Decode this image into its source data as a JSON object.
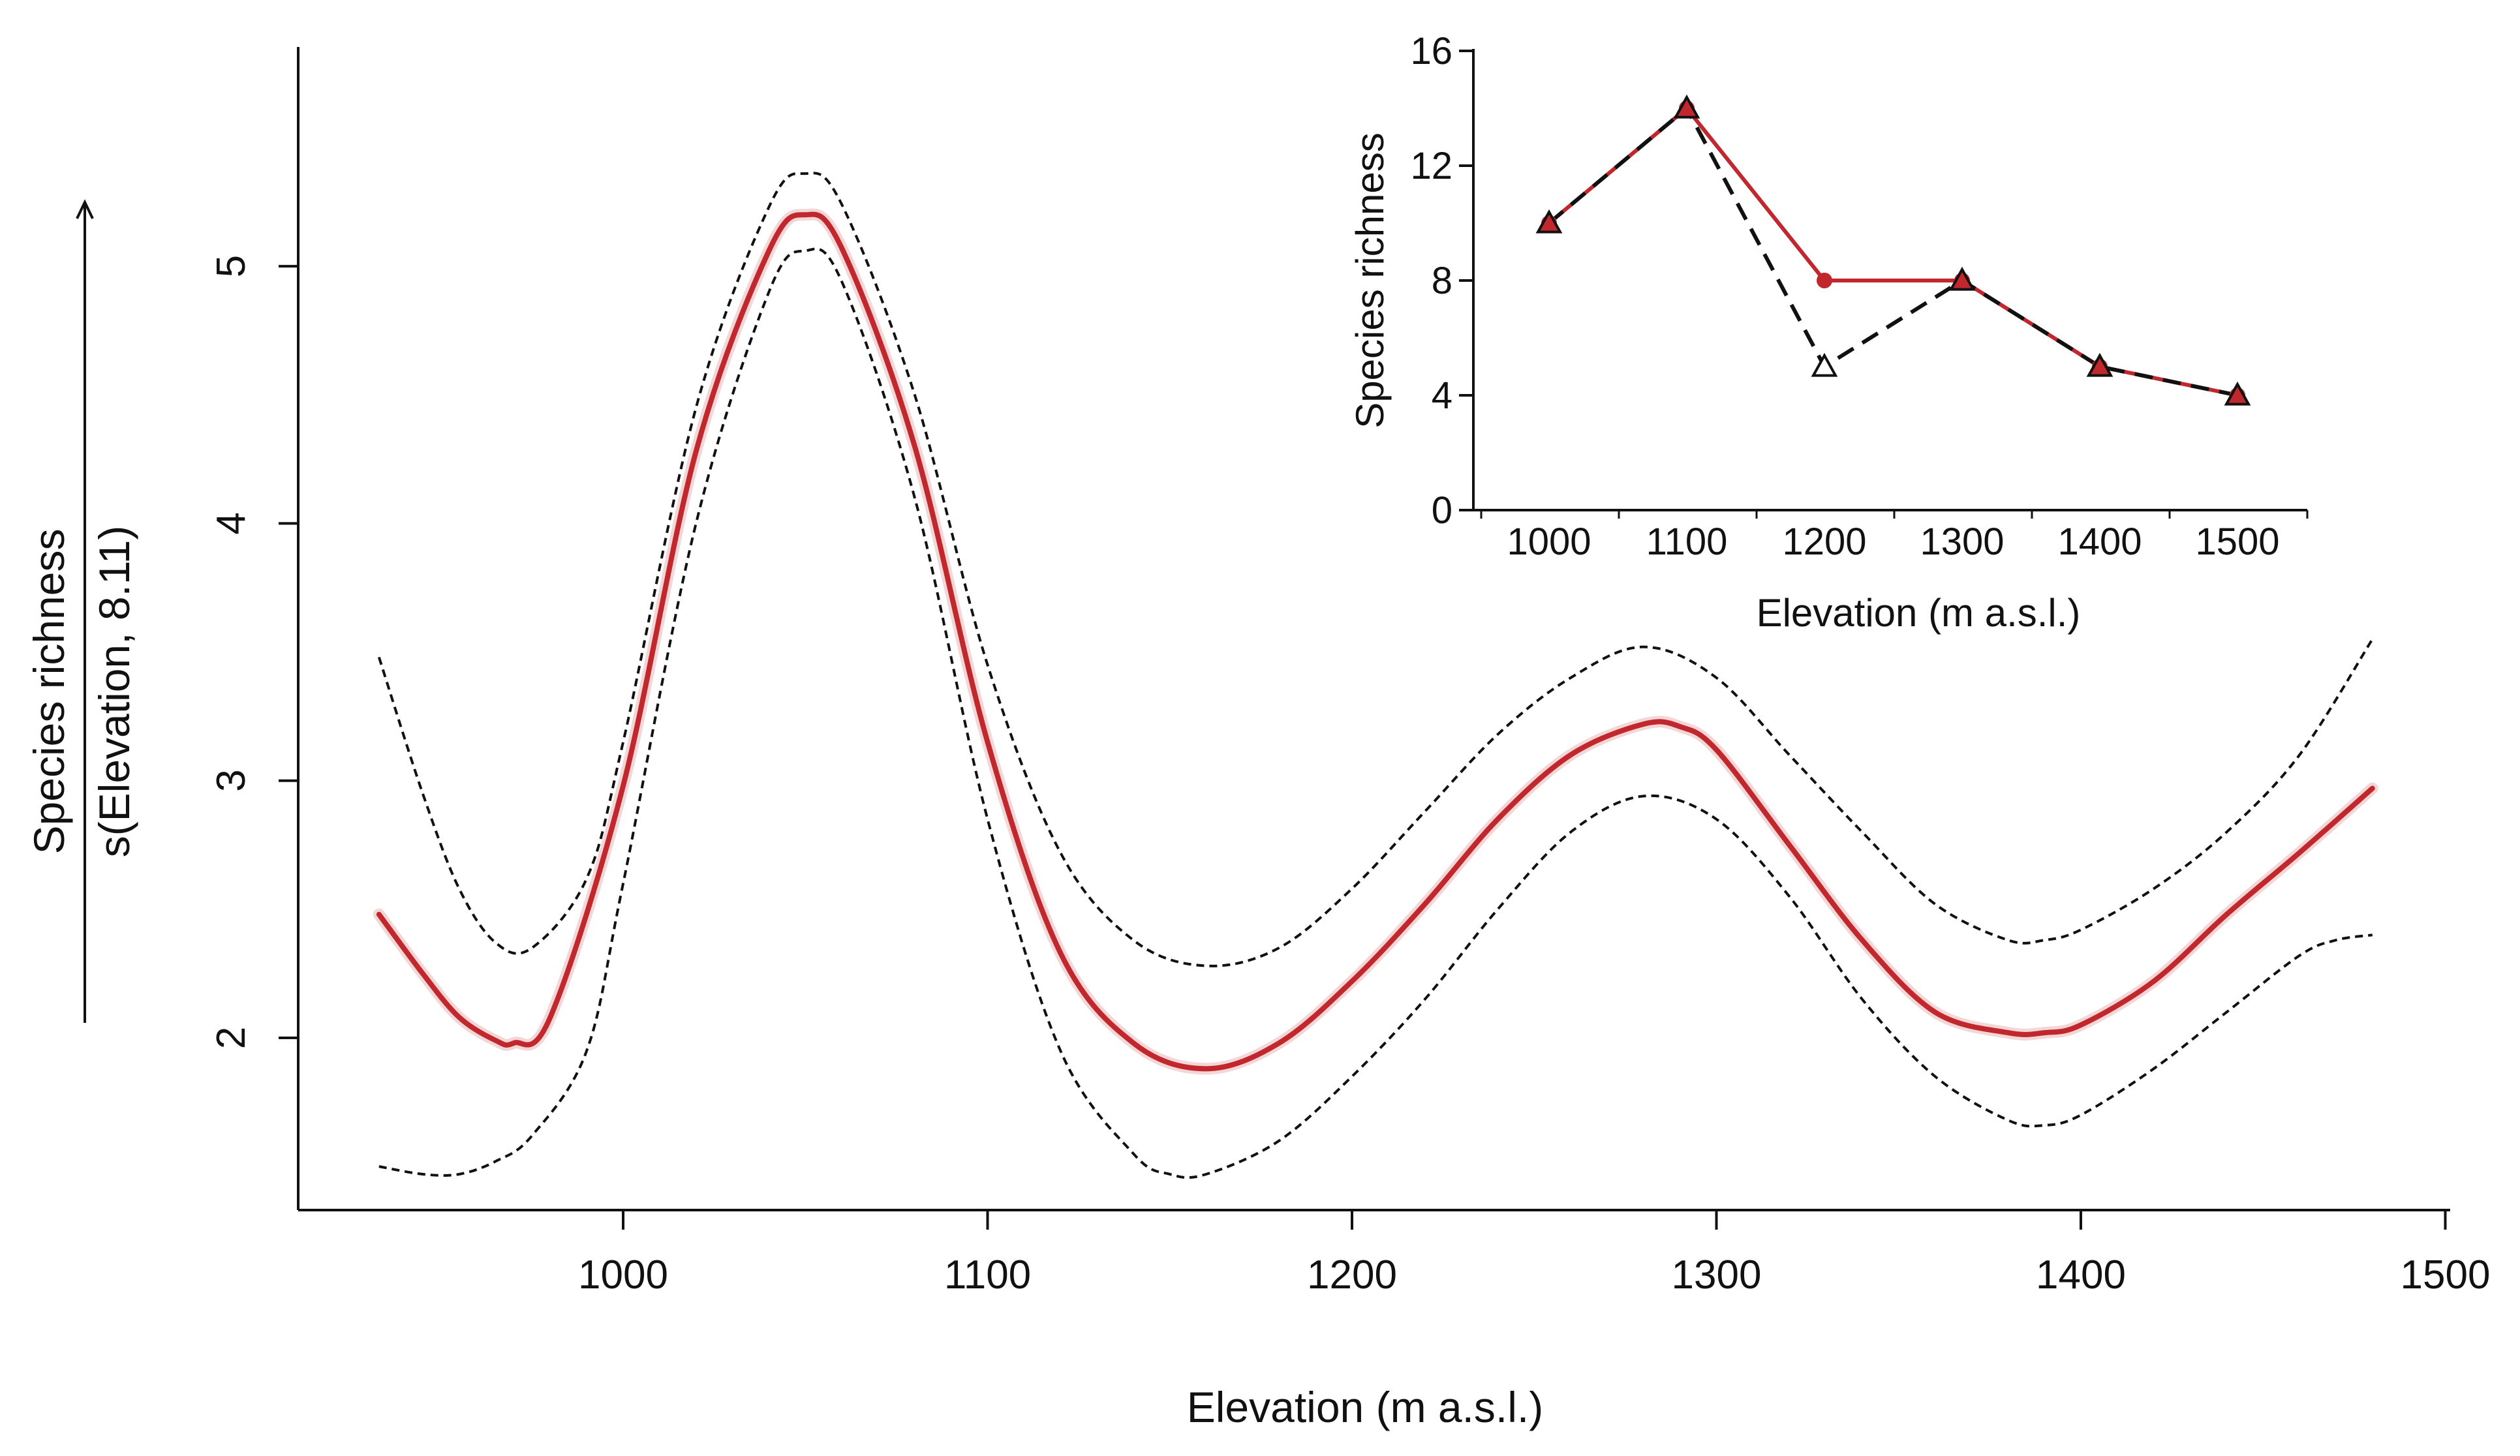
{
  "chart_data": [
    {
      "type": "line",
      "xlabel": "Elevation (m a.s.l.)",
      "ylabel_top": "Species richness",
      "ylabel_bottom": "s(Elevation, 8.11)",
      "xlim": [
        910,
        1500
      ],
      "ylim": [
        1.45,
        5.8
      ],
      "x_ticks": [
        1000,
        1100,
        1200,
        1300,
        1400,
        1500
      ],
      "y_ticks": [
        2,
        3,
        4,
        5
      ],
      "grid": false,
      "colors": {
        "fit": "#c0282e",
        "band": "#111111"
      },
      "series": [
        {
          "role": "fit",
          "style": "solid red",
          "x": [
            933,
            945,
            955,
            965,
            970,
            980,
            1000,
            1020,
            1040,
            1050,
            1060,
            1080,
            1100,
            1120,
            1140,
            1160,
            1180,
            1200,
            1220,
            1240,
            1260,
            1280,
            1290,
            1300,
            1320,
            1340,
            1360,
            1380,
            1390,
            1400,
            1420,
            1440,
            1460,
            1480
          ],
          "y": [
            2.48,
            2.25,
            2.08,
            1.99,
            1.98,
            2.08,
            2.98,
            4.28,
            5.06,
            5.2,
            5.07,
            4.3,
            3.15,
            2.33,
            1.98,
            1.88,
            1.98,
            2.22,
            2.52,
            2.85,
            3.1,
            3.22,
            3.21,
            3.12,
            2.75,
            2.38,
            2.1,
            2.02,
            2.02,
            2.05,
            2.22,
            2.48,
            2.72,
            2.97
          ]
        },
        {
          "role": "upper-band",
          "style": "dashed black",
          "x": [
            933,
            945,
            955,
            965,
            975,
            990,
            1000,
            1020,
            1040,
            1050,
            1060,
            1080,
            1100,
            1120,
            1140,
            1160,
            1180,
            1200,
            1220,
            1240,
            1260,
            1280,
            1300,
            1320,
            1340,
            1360,
            1380,
            1390,
            1400,
            1420,
            1440,
            1460,
            1480
          ],
          "y": [
            3.48,
            2.95,
            2.58,
            2.37,
            2.35,
            2.62,
            3.15,
            4.45,
            5.23,
            5.36,
            5.24,
            4.5,
            3.45,
            2.72,
            2.38,
            2.28,
            2.35,
            2.58,
            2.88,
            3.18,
            3.4,
            3.52,
            3.4,
            3.1,
            2.8,
            2.52,
            2.38,
            2.38,
            2.42,
            2.58,
            2.8,
            3.1,
            3.55
          ]
        },
        {
          "role": "lower-band",
          "style": "dashed black",
          "x": [
            933,
            945,
            955,
            965,
            975,
            990,
            1000,
            1020,
            1040,
            1050,
            1060,
            1080,
            1100,
            1120,
            1140,
            1150,
            1160,
            1180,
            1200,
            1220,
            1240,
            1260,
            1280,
            1300,
            1320,
            1340,
            1360,
            1380,
            1390,
            1400,
            1420,
            1440,
            1460,
            1470,
            1480
          ],
          "y": [
            1.5,
            1.47,
            1.47,
            1.52,
            1.62,
            1.95,
            2.6,
            4.0,
            4.9,
            5.06,
            4.94,
            4.1,
            2.85,
            1.95,
            1.55,
            1.47,
            1.47,
            1.6,
            1.85,
            2.15,
            2.5,
            2.8,
            2.94,
            2.85,
            2.55,
            2.15,
            1.85,
            1.68,
            1.66,
            1.7,
            1.88,
            2.1,
            2.32,
            2.38,
            2.4
          ]
        }
      ]
    },
    {
      "type": "line",
      "xlabel": "Elevation (m a.s.l.)",
      "ylabel": "Species richness",
      "categories": [
        1000,
        1100,
        1200,
        1300,
        1400,
        1500
      ],
      "ylim": [
        0,
        16
      ],
      "y_ticks": [
        0,
        4,
        8,
        12,
        16
      ],
      "grid": false,
      "colors": {
        "observed": "#c0282e",
        "predicted": "#111111",
        "marker_fill": "#c0282e"
      },
      "series": [
        {
          "role": "observed",
          "style": "solid red, filled circles",
          "values": [
            10,
            14,
            8,
            8,
            5,
            4
          ]
        },
        {
          "role": "predicted",
          "style": "dashed black, open triangles",
          "values": [
            10,
            14,
            5,
            8,
            5,
            4
          ]
        }
      ]
    }
  ]
}
